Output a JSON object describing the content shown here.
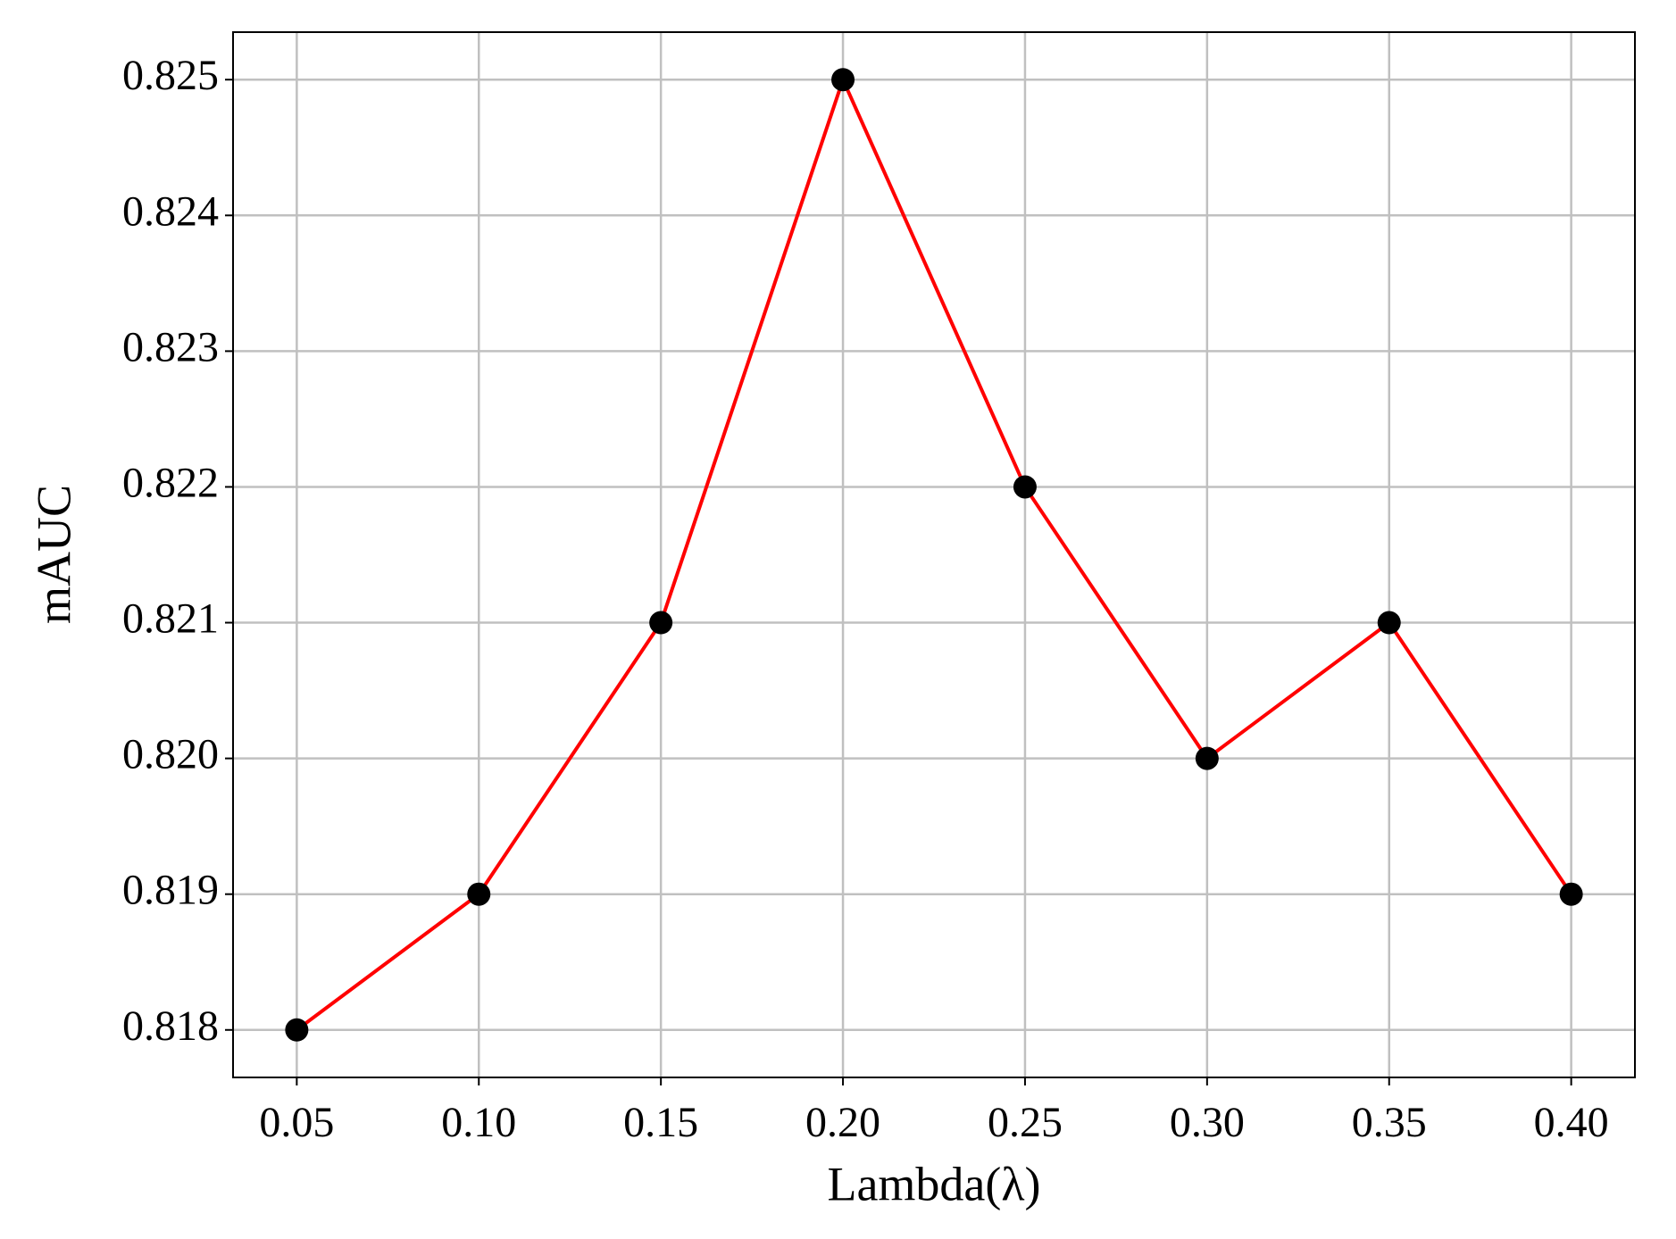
{
  "chart_data": {
    "type": "line",
    "x_label": "Lambda(λ)",
    "y_label": "mAUC",
    "x": [
      0.05,
      0.1,
      0.15,
      0.2,
      0.25,
      0.3,
      0.35,
      0.4
    ],
    "series": [
      {
        "values": [
          0.818,
          0.819,
          0.821,
          0.825,
          0.822,
          0.82,
          0.821,
          0.819
        ],
        "color": "#ff0000",
        "marker_color": "#000000"
      }
    ],
    "xlim": [
      0.0325,
      0.4175
    ],
    "xticks": [
      0.05,
      {
        "value": 0.1,
        "label": "0.10"
      },
      0.15,
      {
        "value": 0.2,
        "label": "0.20"
      },
      0.25,
      {
        "value": 0.3,
        "label": "0.30"
      },
      0.35,
      {
        "value": 0.4,
        "label": "0.40"
      }
    ],
    "ylim": [
      0.81765,
      0.82535
    ],
    "yticks": [
      0.818,
      0.819,
      {
        "value": 0.82,
        "label": "0.820"
      },
      0.821,
      0.822,
      0.823,
      0.824,
      0.825
    ],
    "grid": true
  }
}
